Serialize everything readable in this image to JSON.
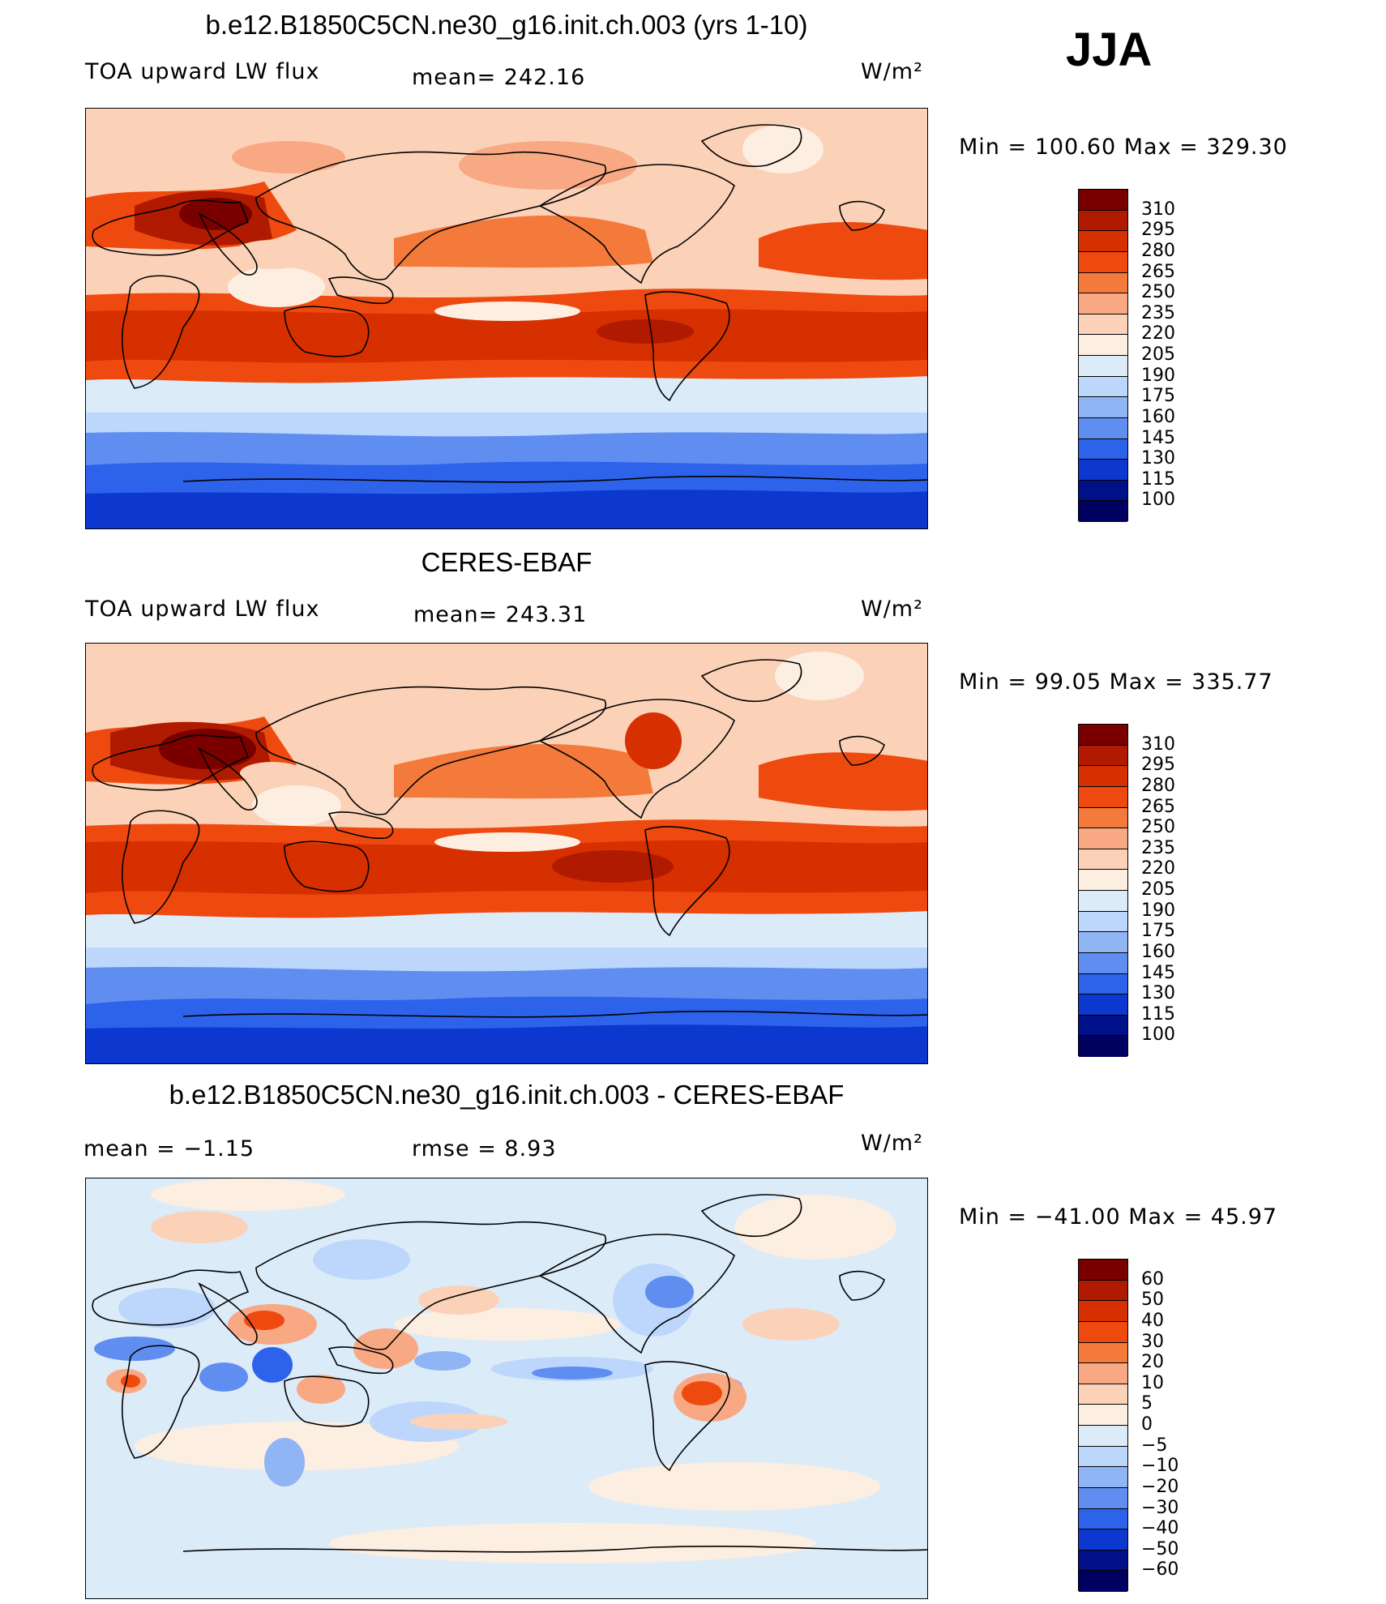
{
  "season": "JJA",
  "units": "W/m²",
  "panels": [
    {
      "title": "b.e12.B1850C5CN.ne30_g16.init.ch.003 (yrs 1-10)",
      "variable": "TOA upward LW flux",
      "stat_left": "",
      "stat_mid": "mean= 242.16",
      "minmax": "Min = 100.60 Max = 329.30",
      "levels": [
        "310",
        "295",
        "280",
        "265",
        "250",
        "235",
        "220",
        "205",
        "190",
        "175",
        "160",
        "145",
        "130",
        "115",
        "100"
      ],
      "colors": [
        "#7a0000",
        "#b01a00",
        "#d63000",
        "#ee4a10",
        "#f47a3c",
        "#f8a882",
        "#fbd2b8",
        "#fdeee2",
        "#dcebf8",
        "#bcd7fb",
        "#8fb5f5",
        "#5f8ef0",
        "#2d62ea",
        "#0d38d0",
        "#001088",
        "#000060"
      ]
    },
    {
      "title": "CERES-EBAF",
      "variable": "TOA upward LW flux",
      "stat_left": "",
      "stat_mid": "mean= 243.31",
      "minmax": "Min =  99.05 Max = 335.77",
      "levels": [
        "310",
        "295",
        "280",
        "265",
        "250",
        "235",
        "220",
        "205",
        "190",
        "175",
        "160",
        "145",
        "130",
        "115",
        "100"
      ],
      "colors": [
        "#7a0000",
        "#b01a00",
        "#d63000",
        "#ee4a10",
        "#f47a3c",
        "#f8a882",
        "#fbd2b8",
        "#fdeee2",
        "#dcebf8",
        "#bcd7fb",
        "#8fb5f5",
        "#5f8ef0",
        "#2d62ea",
        "#0d38d0",
        "#001088",
        "#000060"
      ]
    },
    {
      "title": "b.e12.B1850C5CN.ne30_g16.init.ch.003 - CERES-EBAF",
      "variable": "",
      "stat_left": "mean =   −1.15",
      "stat_mid": "rmse =    8.93",
      "minmax": "Min = −41.00 Max =  45.97",
      "levels": [
        "60",
        "50",
        "40",
        "30",
        "20",
        "10",
        "5",
        "0",
        "−5",
        "−10",
        "−20",
        "−30",
        "−40",
        "−50",
        "−60"
      ],
      "colors": [
        "#7a0000",
        "#b01a00",
        "#d63000",
        "#ee4a10",
        "#f47a3c",
        "#f8a882",
        "#fbd2b8",
        "#fdeee2",
        "#dcebf8",
        "#bcd7fb",
        "#8fb5f5",
        "#5f8ef0",
        "#2d62ea",
        "#0d38d0",
        "#001088",
        "#000060"
      ]
    }
  ]
}
